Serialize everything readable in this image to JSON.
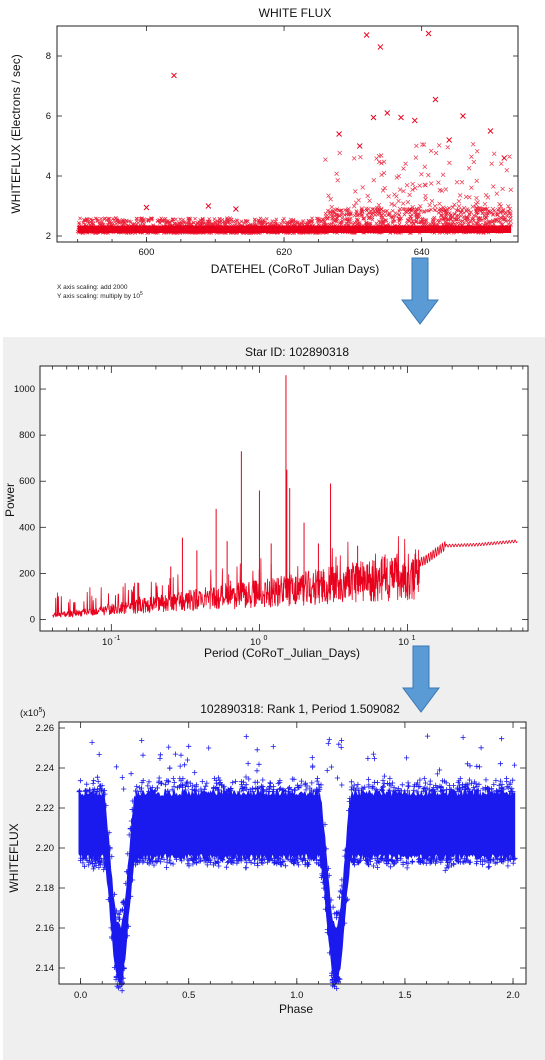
{
  "colors": {
    "panel1_marks": "#e8001c",
    "panel2_line": "#e8001c",
    "panel3_marks": "#1a1aee",
    "arrow": "#5b9bd5",
    "panel_bg": "#efefef"
  },
  "notes": {
    "x_scaling": "X axis scaling: add 2000",
    "y_scaling_prefix": "Y axis scaling: multiply by 10",
    "y_scaling_exp": "5"
  },
  "chart_data": [
    {
      "type": "scatter",
      "marker": "x",
      "title": "WHITE FLUX",
      "xlabel": "DATEHEL (CoRoT Julian Days)",
      "ylabel": "WHITEFLUX (Electrons / sec)",
      "xlim": [
        587,
        654
      ],
      "ylim": [
        1.8,
        9.0
      ],
      "xticks": [
        600,
        620,
        640
      ],
      "yticks": [
        2,
        4,
        6,
        8
      ],
      "baseline": {
        "x_start": 590,
        "x_end": 653,
        "low": 2.1,
        "high_before_626": 2.6,
        "high_after_626": 2.9
      },
      "outliers": [
        {
          "x": 604,
          "y": 7.35
        },
        {
          "x": 632,
          "y": 8.7
        },
        {
          "x": 634,
          "y": 8.3
        },
        {
          "x": 641,
          "y": 8.75
        },
        {
          "x": 642,
          "y": 6.55
        },
        {
          "x": 646,
          "y": 6.0
        },
        {
          "x": 633,
          "y": 5.95
        },
        {
          "x": 635,
          "y": 6.1
        },
        {
          "x": 637,
          "y": 5.95
        },
        {
          "x": 639,
          "y": 5.85
        },
        {
          "x": 650,
          "y": 5.5
        },
        {
          "x": 628,
          "y": 5.4
        },
        {
          "x": 631,
          "y": 5.0
        },
        {
          "x": 644,
          "y": 5.2
        },
        {
          "x": 652,
          "y": 4.6
        },
        {
          "x": 600,
          "y": 2.95
        },
        {
          "x": 609,
          "y": 3.0
        },
        {
          "x": 613,
          "y": 2.9
        }
      ]
    },
    {
      "type": "line",
      "title": "Star ID: 102890318",
      "xlabel": "Period (CoRoT_Julian_Days)",
      "ylabel": "Power",
      "xscale": "log",
      "xlim": [
        0.033,
        65
      ],
      "ylim": [
        -50,
        1100
      ],
      "yticks": [
        0,
        200,
        400,
        600,
        800,
        1000
      ],
      "xticks_log10": [
        -1,
        0,
        1
      ],
      "peaks": [
        {
          "x": 0.51,
          "y": 480
        },
        {
          "x": 0.755,
          "y": 730
        },
        {
          "x": 1.0,
          "y": 560
        },
        {
          "x": 1.51,
          "y": 1060
        },
        {
          "x": 1.53,
          "y": 650
        },
        {
          "x": 1.6,
          "y": 570
        },
        {
          "x": 3.02,
          "y": 590
        },
        {
          "x": 0.302,
          "y": 355
        },
        {
          "x": 0.378,
          "y": 300
        },
        {
          "x": 0.605,
          "y": 340
        },
        {
          "x": 2.0,
          "y": 420
        },
        {
          "x": 2.5,
          "y": 330
        },
        {
          "x": 4.6,
          "y": 320
        },
        {
          "x": 0.2,
          "y": 160
        },
        {
          "x": 0.252,
          "y": 230
        },
        {
          "x": 0.151,
          "y": 160
        },
        {
          "x": 1.2,
          "y": 330
        }
      ],
      "trend": [
        {
          "x": 0.04,
          "y": 20
        },
        {
          "x": 0.1,
          "y": 55
        },
        {
          "x": 0.3,
          "y": 100
        },
        {
          "x": 1.0,
          "y": 140
        },
        {
          "x": 3.0,
          "y": 185
        },
        {
          "x": 5.0,
          "y": 210
        },
        {
          "x": 10,
          "y": 235
        },
        {
          "x": 13,
          "y": 255
        },
        {
          "x": 18,
          "y": 320
        },
        {
          "x": 30,
          "y": 325
        },
        {
          "x": 55,
          "y": 340
        }
      ]
    },
    {
      "type": "scatter",
      "marker": "+",
      "title": "102890318: Rank 1, Period 1.509082",
      "xlabel": "Phase",
      "ylabel": "WHITEFLUX",
      "yscale_prefix": "(x10",
      "yscale_exp": "5",
      "yscale_suffix": ")",
      "xlim": [
        -0.1,
        2.06
      ],
      "ylim": [
        2.132,
        2.263
      ],
      "xticks": [
        0.0,
        0.5,
        1.0,
        1.5,
        2.0
      ],
      "xticklabels": [
        "0.0",
        "0.5",
        "1.0",
        "1.5",
        "2.0"
      ],
      "yticks": [
        2.14,
        2.16,
        2.18,
        2.2,
        2.22,
        2.24,
        2.26
      ],
      "yticklabels": [
        "2.14",
        "2.16",
        "2.18",
        "2.20",
        "2.22",
        "2.24",
        "2.26"
      ],
      "baseline": {
        "low": 2.195,
        "high": 2.228
      },
      "eclipse_centers": [
        0.18,
        1.18
      ],
      "eclipse_min": 2.141
    }
  ]
}
